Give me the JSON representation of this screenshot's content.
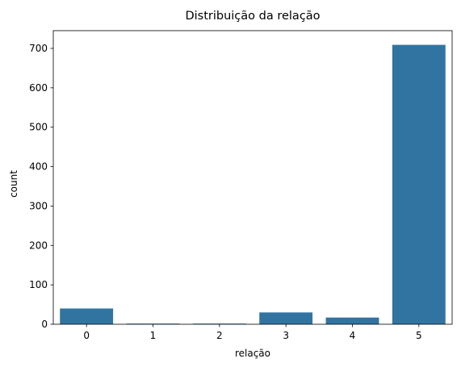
{
  "chart_data": {
    "type": "bar",
    "title": "Distribuição da relação",
    "xlabel": "relação",
    "ylabel": "count",
    "categories": [
      "0",
      "1",
      "2",
      "3",
      "4",
      "5"
    ],
    "values": [
      40,
      1,
      1,
      30,
      17,
      709
    ],
    "ylim": [
      0,
      745
    ],
    "yticks": [
      0,
      100,
      200,
      300,
      400,
      500,
      600,
      700
    ],
    "bar_color": "#3274a1",
    "grid": false,
    "legend": "none"
  }
}
